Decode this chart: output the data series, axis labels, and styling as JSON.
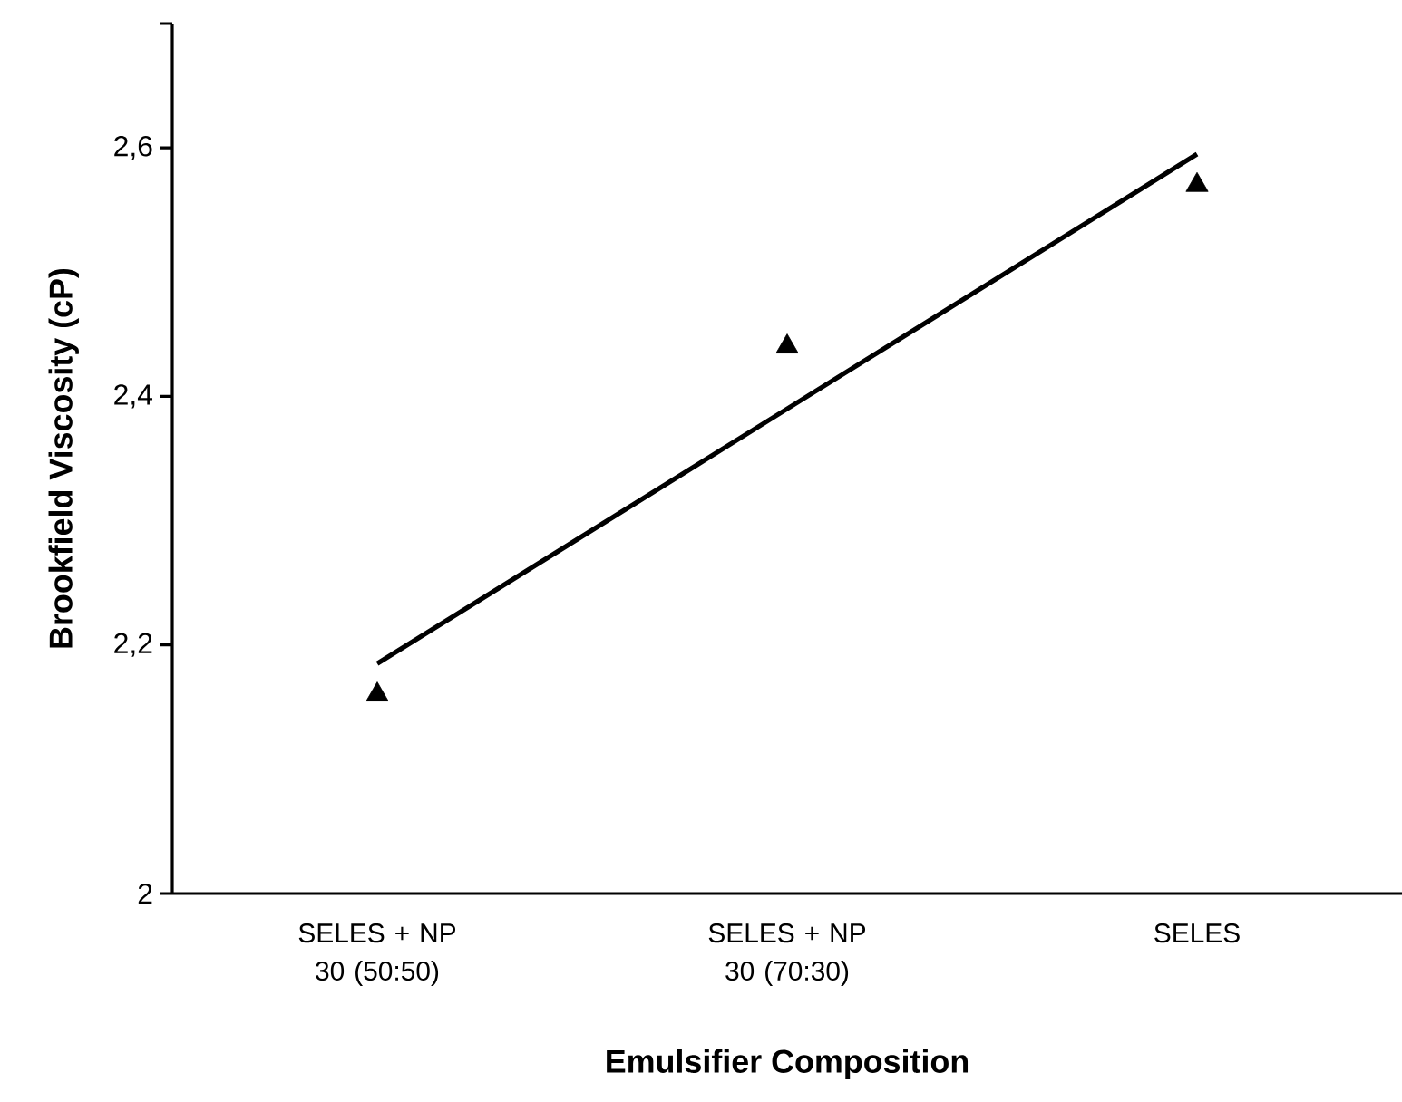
{
  "chart_data": {
    "type": "scatter",
    "xlabel": "Emulsifier Composition",
    "ylabel": "Brookfield Viscosity (cP)",
    "categories": [
      "SELES + NP 30 (50:50)",
      "SELES + NP 30 (70:30)",
      "SELES"
    ],
    "series": [
      {
        "color": "#000000",
        "marker": "triangle",
        "values": [
          2.16,
          2.44,
          2.57
        ]
      },
      {
        "type": "line",
        "color": "#000000",
        "marker": "none",
        "line_style": "solid",
        "values": [
          2.185,
          2.39,
          2.595
        ]
      }
    ],
    "ylim": [
      2,
      2.7
    ],
    "yticks": [
      {
        "value": 2,
        "label": "2"
      },
      {
        "value": 2.2,
        "label": "2,2"
      },
      {
        "value": 2.4,
        "label": "2,4"
      },
      {
        "value": 2.6,
        "label": "2,6"
      },
      {
        "value": 2.7,
        "label": null
      }
    ],
    "grid": false
  }
}
